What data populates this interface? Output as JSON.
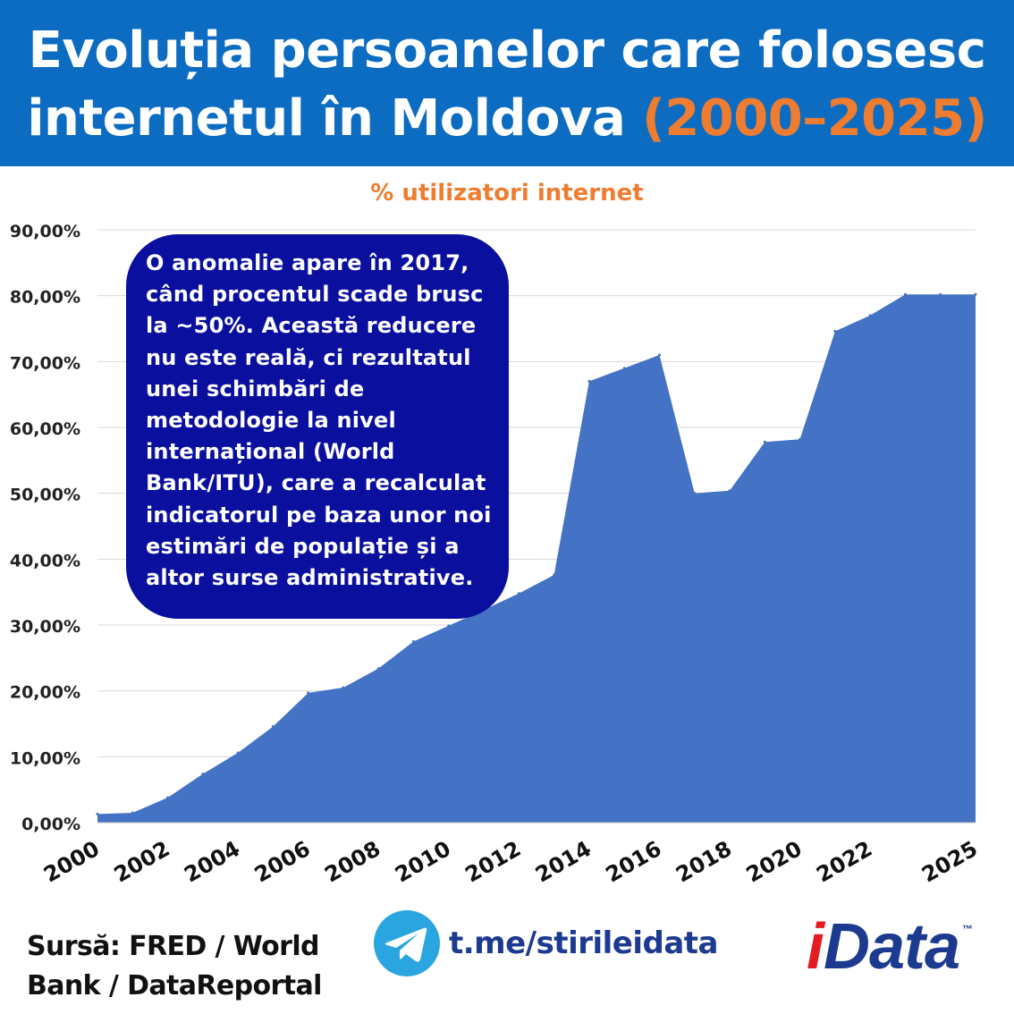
{
  "header": {
    "title_line1": "Evoluția persoanelor care folosesc",
    "title_line2_main": "internetul în Moldova ",
    "title_line2_accent": "(2000–2025)",
    "background_color": "#0b6cc1",
    "accent_color": "#ef7d31"
  },
  "chart_label": "% utilizatori internet",
  "annotation": "O anomalie apare în 2017, când procentul scade brusc la ~50%. Această reducere nu este reală, ci rezultatul unei schimbări de metodologie la nivel internațional (World Bank/ITU), care a recalculat indicatorul pe baza unor noi estimări de populație și a altor surse administrative.",
  "footer": {
    "source_text": "Sursă: FRED / World Bank / DataReportal",
    "telegram_icon": "telegram-icon",
    "telegram_link": "t.me/stirileidata",
    "logo_text": "iData",
    "logo_tm": "™"
  },
  "chart_data": {
    "type": "area",
    "x": [
      2000,
      2001,
      2002,
      2003,
      2004,
      2005,
      2006,
      2007,
      2008,
      2009,
      2010,
      2011,
      2012,
      2013,
      2014,
      2015,
      2016,
      2017,
      2018,
      2019,
      2020,
      2021,
      2022,
      2023,
      2024,
      2025
    ],
    "values": [
      1.3,
      1.5,
      3.8,
      7.4,
      10.6,
      14.6,
      19.7,
      20.5,
      23.4,
      27.5,
      29.9,
      32.3,
      34.8,
      37.6,
      67.0,
      69.0,
      71.0,
      50.0,
      50.4,
      57.8,
      58.2,
      74.6,
      77.0,
      80.2,
      80.2,
      80.2
    ],
    "x_tick_labels": [
      "2000",
      "2002",
      "2004",
      "2006",
      "2008",
      "2010",
      "2012",
      "2014",
      "2016",
      "2018",
      "2020",
      "2022",
      "2025"
    ],
    "y_tick_labels": [
      "0,00%",
      "10,00%",
      "20,00%",
      "30,00%",
      "40,00%",
      "50,00%",
      "60,00%",
      "70,00%",
      "80,00%",
      "90,00%"
    ],
    "y_ticks": [
      0,
      10,
      20,
      30,
      40,
      50,
      60,
      70,
      80,
      90
    ],
    "ylim": [
      0,
      90
    ],
    "ylabel": "% utilizatori internet",
    "grid": true,
    "fill_color": "#4472c4",
    "grid_color": "#d9d9d9"
  }
}
